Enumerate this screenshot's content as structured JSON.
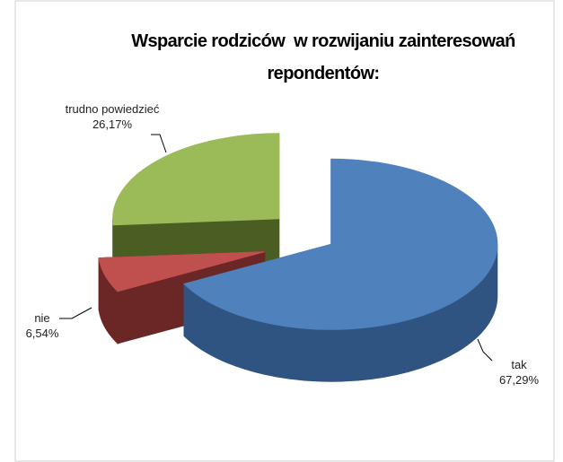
{
  "chart_data": {
    "type": "pie3d",
    "title": "Wsparcie rodziców  w rozwijaniu zainteresowań repondentów:",
    "categories": [
      "tak",
      "nie",
      "trudno powiedzieć"
    ],
    "values": [
      67.29,
      6.54,
      26.17
    ],
    "value_labels": [
      "67,29%",
      "6,54%",
      "26,17%"
    ],
    "colors": [
      "#4f81bd",
      "#c0504d",
      "#9bbb59"
    ],
    "side_colors": [
      "#2f5482",
      "#6b2725",
      "#4a5e24"
    ]
  }
}
